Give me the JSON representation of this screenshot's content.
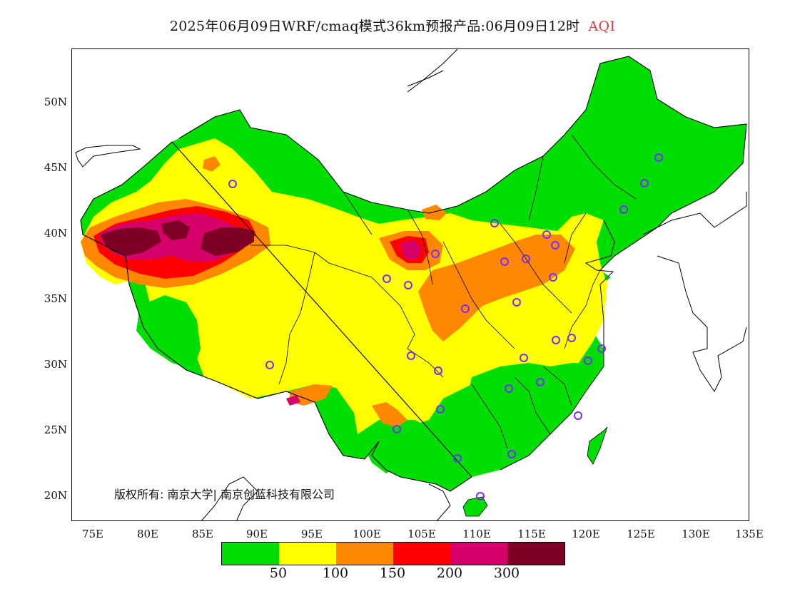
{
  "header": {
    "title": "2025年06月09日WRF/cmaq模式36km预报产品:06月09日12时",
    "variable": "AQI"
  },
  "map": {
    "lat_labels": [
      "50N",
      "45N",
      "40N",
      "35N",
      "30N",
      "25N",
      "20N"
    ],
    "lon_labels": [
      "75E",
      "80E",
      "85E",
      "90E",
      "95E",
      "100E",
      "105E",
      "110E",
      "115E",
      "120E",
      "125E",
      "130E",
      "135E"
    ],
    "copyright": "版权所有: 南京大学| 南京创蓝科技有限公司"
  },
  "legend": {
    "colors": [
      "#00dd00",
      "#ffff00",
      "#ff8800",
      "#ff0000",
      "#d6006b",
      "#7d0024"
    ],
    "ticks": [
      "50",
      "100",
      "150",
      "200",
      "300"
    ]
  }
}
